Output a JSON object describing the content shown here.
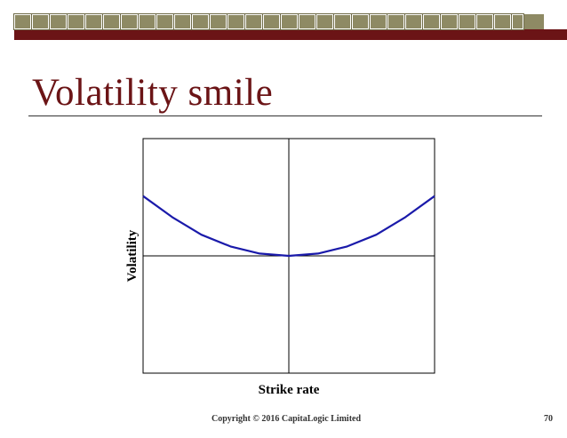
{
  "slide": {
    "title": "Volatility smile",
    "copyright": "Copyright © 2016 CapitaLogic Limited",
    "page_number": "70"
  },
  "colors": {
    "banner_olive": "#8e8a64",
    "banner_maroon": "#6b1416",
    "title": "#6b1416",
    "curve": "#1a1aaa"
  },
  "chart_data": {
    "type": "line",
    "title": "",
    "xlabel": "Strike rate",
    "ylabel": "Volatility",
    "xlim": [
      -1,
      1
    ],
    "ylim": [
      -1,
      1
    ],
    "grid": false,
    "crosshair": true,
    "series": [
      {
        "name": "",
        "color": "#1a1aaa",
        "x": [
          -1,
          -0.8,
          -0.6,
          -0.4,
          -0.2,
          0,
          0.2,
          0.4,
          0.6,
          0.8,
          1
        ],
        "y": [
          0.51,
          0.33,
          0.18,
          0.08,
          0.02,
          0,
          0.02,
          0.08,
          0.18,
          0.33,
          0.51
        ]
      }
    ]
  }
}
